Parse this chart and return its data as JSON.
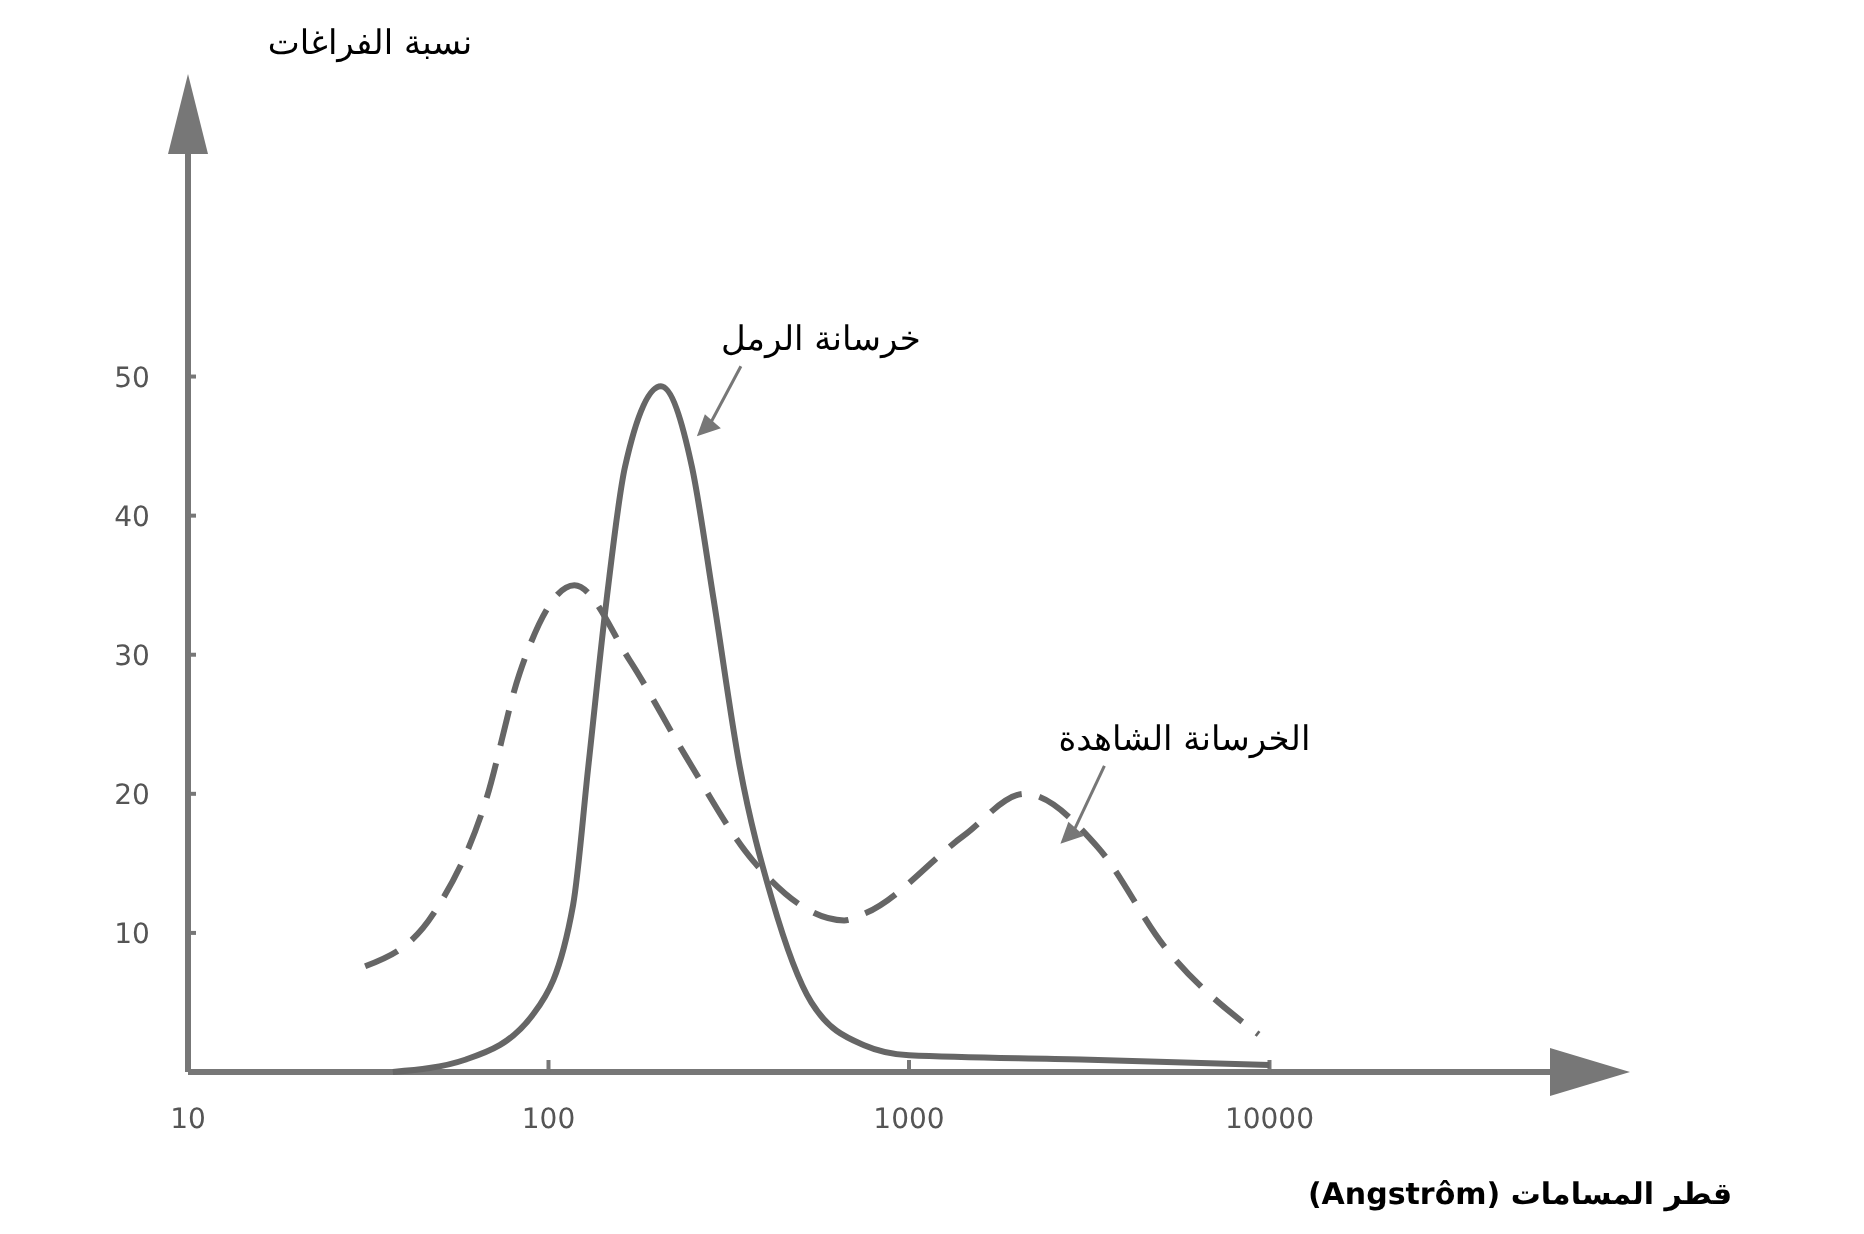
{
  "chart_data": {
    "type": "line",
    "xlabel": "قطر المسامات (Angstrôm)",
    "ylabel": "نسبة الفراغات",
    "log": "x",
    "xlim": [
      10,
      60000
    ],
    "ylim": [
      0,
      66
    ],
    "xticks": [
      10,
      100,
      1000,
      10000
    ],
    "yticks": [
      10,
      20,
      30,
      40,
      50
    ],
    "grid": false,
    "marker": "none",
    "series": [
      {
        "name": "خرسانة الرمل",
        "color": "#666666",
        "line_style": "solid",
        "x": [
          37,
          59,
          91,
          117,
          129,
          145,
          163,
          205,
          250,
          287,
          339,
          417,
          536,
          754,
          1000,
          3000,
          10000
        ],
        "values": [
          0,
          0.9,
          4.2,
          12,
          22,
          34,
          43.5,
          49.3,
          43.5,
          34,
          22,
          12.4,
          5,
          1.9,
          1.2,
          0.9,
          0.5
        ]
      },
      {
        "name": "الخرسانة الشاهدة",
        "color": "#666666",
        "line_style": "dashed",
        "x": [
          31,
          48,
          67,
          83,
          118,
          168,
          239,
          369,
          661,
          754,
          1420,
          2090,
          3330,
          5120,
          9330
        ],
        "values": [
          7.6,
          11.4,
          19.5,
          28.6,
          35,
          29.6,
          22.8,
          15.2,
          10.9,
          11.4,
          17,
          20,
          16.2,
          9,
          2.7
        ]
      }
    ]
  }
}
